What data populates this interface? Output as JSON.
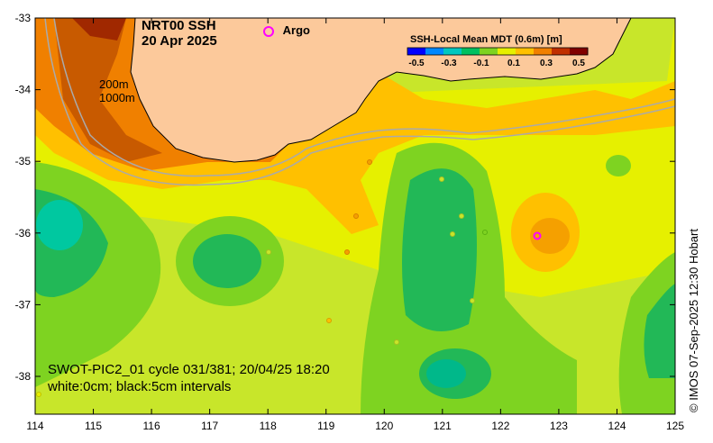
{
  "map": {
    "title_line1": "NRT00 SSH",
    "title_line2": "20 Apr 2025",
    "argo_label": "Argo",
    "contour_200": "200m",
    "contour_1000": "1000m",
    "swot_line1": "SWOT-PIC2_01 cycle 031/381; 20/04/25 18:20",
    "swot_line2": "white:0cm; black:5cm intervals",
    "credit": "© IMOS 07-Sep-2025 12:30 Hobart",
    "lon_ticks": [
      "114",
      "115",
      "116",
      "117",
      "118",
      "119",
      "120",
      "121",
      "122",
      "123",
      "124",
      "125"
    ],
    "lat_ticks": [
      "-33",
      "-34",
      "-35",
      "-36",
      "-37",
      "-38"
    ]
  },
  "colorbar": {
    "title": "SSH-Local Mean MDT (0.6m) [m]",
    "ticks": [
      "-0.5",
      "-0.3",
      "-0.1",
      "0.1",
      "0.3",
      "0.5"
    ],
    "colors": [
      "#0000ff",
      "#0088ff",
      "#00c8c0",
      "#00c060",
      "#7ed321",
      "#e6f000",
      "#ffc000",
      "#f08000",
      "#c03000",
      "#800000"
    ]
  },
  "colors": {
    "land": "#fcc99b",
    "argo": "#ff00ff"
  }
}
